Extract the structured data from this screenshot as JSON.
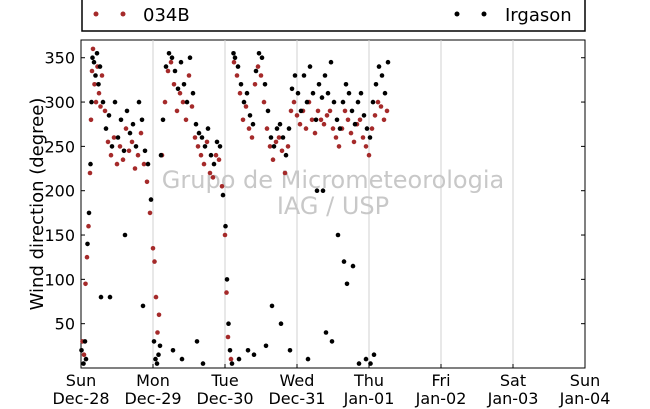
{
  "chart_data": {
    "type": "scatter",
    "ylabel": "Wind direction (degree)",
    "xlabel": "",
    "ylim": [
      0,
      370
    ],
    "yticks": [
      50,
      100,
      150,
      200,
      250,
      300,
      350
    ],
    "xlim": [
      "2014-12-28",
      "2015-01-04"
    ],
    "xticks": [
      {
        "day": "Sun",
        "date": "Dec-28"
      },
      {
        "day": "Mon",
        "date": "Dec-29"
      },
      {
        "day": "Tue",
        "date": "Dec-30"
      },
      {
        "day": "Wed",
        "date": "Dec-31"
      },
      {
        "day": "Thu",
        "date": "Jan-01"
      },
      {
        "day": "Fri",
        "date": "Jan-02"
      },
      {
        "day": "Sat",
        "date": "Jan-03"
      },
      {
        "day": "Sun",
        "date": "Jan-04"
      }
    ],
    "grid": "vertical",
    "legend_position": "top",
    "watermark": [
      "Grupo de Micrometeorologia",
      "IAG / USP"
    ],
    "series": [
      {
        "name": "034B",
        "color": "#a52a2a",
        "points": [
          [
            "2014-12-28 00:30",
            30
          ],
          [
            "2014-12-28 01:00",
            15
          ],
          [
            "2014-12-28 01:30",
            95
          ],
          [
            "2014-12-28 02:00",
            125
          ],
          [
            "2014-12-28 02:30",
            160
          ],
          [
            "2014-12-28 03:00",
            220
          ],
          [
            "2014-12-28 03:20",
            280
          ],
          [
            "2014-12-28 03:40",
            335
          ],
          [
            "2014-12-28 04:00",
            360
          ],
          [
            "2014-12-28 04:30",
            320
          ],
          [
            "2014-12-28 05:00",
            300
          ],
          [
            "2014-12-28 05:30",
            340
          ],
          [
            "2014-12-28 06:00",
            310
          ],
          [
            "2014-12-28 06:30",
            295
          ],
          [
            "2014-12-28 07:00",
            330
          ],
          [
            "2014-12-28 08:00",
            290
          ],
          [
            "2014-12-28 09:00",
            255
          ],
          [
            "2014-12-28 10:00",
            240
          ],
          [
            "2014-12-28 11:00",
            260
          ],
          [
            "2014-12-28 12:00",
            230
          ],
          [
            "2014-12-28 13:00",
            250
          ],
          [
            "2014-12-28 14:00",
            235
          ],
          [
            "2014-12-28 15:00",
            270
          ],
          [
            "2014-12-28 16:00",
            245
          ],
          [
            "2014-12-28 17:00",
            255
          ],
          [
            "2014-12-28 18:00",
            225
          ],
          [
            "2014-12-28 19:00",
            240
          ],
          [
            "2014-12-28 20:00",
            265
          ],
          [
            "2014-12-28 21:00",
            230
          ],
          [
            "2014-12-28 22:00",
            210
          ],
          [
            "2014-12-28 23:00",
            175
          ],
          [
            "2014-12-29 00:00",
            135
          ],
          [
            "2014-12-29 00:30",
            120
          ],
          [
            "2014-12-29 01:00",
            80
          ],
          [
            "2014-12-29 01:30",
            40
          ],
          [
            "2014-12-29 02:00",
            60
          ],
          [
            "2014-12-29 03:00",
            240
          ],
          [
            "2014-12-29 04:00",
            300
          ],
          [
            "2014-12-29 05:00",
            335
          ],
          [
            "2014-12-29 06:00",
            345
          ],
          [
            "2014-12-29 07:00",
            320
          ],
          [
            "2014-12-29 08:00",
            290
          ],
          [
            "2014-12-29 09:00",
            310
          ],
          [
            "2014-12-29 10:00",
            300
          ],
          [
            "2014-12-29 11:00",
            280
          ],
          [
            "2014-12-29 12:00",
            330
          ],
          [
            "2014-12-29 13:00",
            295
          ],
          [
            "2014-12-29 14:00",
            260
          ],
          [
            "2014-12-29 15:00",
            250
          ],
          [
            "2014-12-29 16:00",
            240
          ],
          [
            "2014-12-29 17:00",
            230
          ],
          [
            "2014-12-29 18:00",
            255
          ],
          [
            "2014-12-29 19:00",
            220
          ],
          [
            "2014-12-29 20:00",
            215
          ],
          [
            "2014-12-29 21:00",
            240
          ],
          [
            "2014-12-29 22:00",
            235
          ],
          [
            "2014-12-29 23:00",
            205
          ],
          [
            "2014-12-30 00:00",
            150
          ],
          [
            "2014-12-30 00:30",
            85
          ],
          [
            "2014-12-30 01:00",
            35
          ],
          [
            "2014-12-30 02:00",
            10
          ],
          [
            "2014-12-30 03:00",
            345
          ],
          [
            "2014-12-30 04:00",
            330
          ],
          [
            "2014-12-30 05:00",
            310
          ],
          [
            "2014-12-30 06:00",
            280
          ],
          [
            "2014-12-30 07:00",
            295
          ],
          [
            "2014-12-30 08:00",
            270
          ],
          [
            "2014-12-30 09:00",
            260
          ],
          [
            "2014-12-30 10:00",
            320
          ],
          [
            "2014-12-30 11:00",
            340
          ],
          [
            "2014-12-30 12:00",
            330
          ],
          [
            "2014-12-30 13:00",
            300
          ],
          [
            "2014-12-30 14:00",
            270
          ],
          [
            "2014-12-30 15:00",
            250
          ],
          [
            "2014-12-30 16:00",
            235
          ],
          [
            "2014-12-30 17:00",
            255
          ],
          [
            "2014-12-30 18:00",
            260
          ],
          [
            "2014-12-30 19:00",
            245
          ],
          [
            "2014-12-30 20:00",
            220
          ],
          [
            "2014-12-30 21:00",
            250
          ],
          [
            "2014-12-30 22:00",
            290
          ],
          [
            "2014-12-30 23:00",
            300
          ],
          [
            "2014-12-31 00:00",
            285
          ],
          [
            "2014-12-31 01:00",
            275
          ],
          [
            "2014-12-31 02:00",
            290
          ],
          [
            "2014-12-31 03:00",
            270
          ],
          [
            "2014-12-31 04:00",
            300
          ],
          [
            "2014-12-31 05:00",
            280
          ],
          [
            "2014-12-31 06:00",
            265
          ],
          [
            "2014-12-31 07:00",
            290
          ],
          [
            "2014-12-31 08:00",
            280
          ],
          [
            "2014-12-31 09:00",
            275
          ],
          [
            "2014-12-31 10:00",
            285
          ],
          [
            "2014-12-31 11:00",
            290
          ],
          [
            "2014-12-31 12:00",
            270
          ],
          [
            "2014-12-31 13:00",
            260
          ],
          [
            "2014-12-31 14:00",
            250
          ],
          [
            "2014-12-31 15:00",
            270
          ],
          [
            "2014-12-31 16:00",
            290
          ],
          [
            "2014-12-31 17:00",
            280
          ],
          [
            "2014-12-31 18:00",
            265
          ],
          [
            "2014-12-31 19:00",
            255
          ],
          [
            "2014-12-31 20:00",
            275
          ],
          [
            "2014-12-31 21:00",
            280
          ],
          [
            "2014-12-31 22:00",
            260
          ],
          [
            "2014-12-31 23:00",
            250
          ],
          [
            "2015-01-01 00:00",
            240
          ],
          [
            "2015-01-01 01:00",
            270
          ],
          [
            "2015-01-01 02:00",
            285
          ],
          [
            "2015-01-01 03:00",
            300
          ],
          [
            "2015-01-01 04:00",
            295
          ],
          [
            "2015-01-01 05:00",
            280
          ],
          [
            "2015-01-01 06:00",
            290
          ]
        ]
      },
      {
        "name": "Irgason",
        "color": "#000000",
        "points": [
          [
            "2014-12-28 00:10",
            20
          ],
          [
            "2014-12-28 00:50",
            5
          ],
          [
            "2014-12-28 01:20",
            30
          ],
          [
            "2014-12-28 01:40",
            10
          ],
          [
            "2014-12-28 02:10",
            140
          ],
          [
            "2014-12-28 02:40",
            175
          ],
          [
            "2014-12-28 03:10",
            230
          ],
          [
            "2014-12-28 03:30",
            300
          ],
          [
            "2014-12-28 03:50",
            350
          ],
          [
            "2014-12-28 04:20",
            345
          ],
          [
            "2014-12-28 04:50",
            330
          ],
          [
            "2014-12-28 05:20",
            355
          ],
          [
            "2014-12-28 05:50",
            320
          ],
          [
            "2014-12-28 06:20",
            340
          ],
          [
            "2014-12-28 07:20",
            300
          ],
          [
            "2014-12-28 08:20",
            270
          ],
          [
            "2014-12-28 09:20",
            285
          ],
          [
            "2014-12-28 10:20",
            250
          ],
          [
            "2014-12-28 11:20",
            300
          ],
          [
            "2014-12-28 12:20",
            260
          ],
          [
            "2014-12-28 13:20",
            280
          ],
          [
            "2014-12-28 14:20",
            245
          ],
          [
            "2014-12-28 15:20",
            290
          ],
          [
            "2014-12-28 16:20",
            265
          ],
          [
            "2014-12-28 17:20",
            275
          ],
          [
            "2014-12-28 18:20",
            250
          ],
          [
            "2014-12-28 19:20",
            300
          ],
          [
            "2014-12-28 20:20",
            280
          ],
          [
            "2014-12-28 21:20",
            245
          ],
          [
            "2014-12-28 22:20",
            230
          ],
          [
            "2014-12-28 23:20",
            190
          ],
          [
            "2014-12-29 00:20",
            30
          ],
          [
            "2014-12-29 00:50",
            10
          ],
          [
            "2014-12-29 01:20",
            5
          ],
          [
            "2014-12-29 01:50",
            15
          ],
          [
            "2014-12-29 02:20",
            25
          ],
          [
            "2014-12-29 03:20",
            280
          ],
          [
            "2014-12-29 04:20",
            340
          ],
          [
            "2014-12-29 05:20",
            355
          ],
          [
            "2014-12-29 06:20",
            350
          ],
          [
            "2014-12-29 07:20",
            335
          ],
          [
            "2014-12-29 08:20",
            315
          ],
          [
            "2014-12-29 09:20",
            345
          ],
          [
            "2014-12-29 10:20",
            320
          ],
          [
            "2014-12-29 11:20",
            300
          ],
          [
            "2014-12-29 12:20",
            350
          ],
          [
            "2014-12-29 13:20",
            310
          ],
          [
            "2014-12-29 14:20",
            275
          ],
          [
            "2014-12-29 15:20",
            265
          ],
          [
            "2014-12-29 16:20",
            260
          ],
          [
            "2014-12-29 17:20",
            250
          ],
          [
            "2014-12-29 18:20",
            270
          ],
          [
            "2014-12-29 19:20",
            240
          ],
          [
            "2014-12-29 20:20",
            230
          ],
          [
            "2014-12-29 21:20",
            255
          ],
          [
            "2014-12-29 22:20",
            250
          ],
          [
            "2014-12-29 23:20",
            195
          ],
          [
            "2014-12-30 00:10",
            160
          ],
          [
            "2014-12-30 00:40",
            100
          ],
          [
            "2014-12-30 01:10",
            50
          ],
          [
            "2014-12-30 01:40",
            20
          ],
          [
            "2014-12-30 02:20",
            5
          ],
          [
            "2014-12-30 02:50",
            355
          ],
          [
            "2014-12-30 03:20",
            350
          ],
          [
            "2014-12-30 04:20",
            340
          ],
          [
            "2014-12-30 05:20",
            320
          ],
          [
            "2014-12-30 06:20",
            300
          ],
          [
            "2014-12-30 07:20",
            310
          ],
          [
            "2014-12-30 08:20",
            285
          ],
          [
            "2014-12-30 09:20",
            275
          ],
          [
            "2014-12-30 10:20",
            335
          ],
          [
            "2014-12-30 11:20",
            355
          ],
          [
            "2014-12-30 12:20",
            350
          ],
          [
            "2014-12-30 13:20",
            320
          ],
          [
            "2014-12-30 14:20",
            290
          ],
          [
            "2014-12-30 15:20",
            260
          ],
          [
            "2014-12-30 16:20",
            250
          ],
          [
            "2014-12-30 17:20",
            270
          ],
          [
            "2014-12-30 18:20",
            275
          ],
          [
            "2014-12-30 19:20",
            260
          ],
          [
            "2014-12-30 20:20",
            240
          ],
          [
            "2014-12-30 21:20",
            270
          ],
          [
            "2014-12-30 22:20",
            315
          ],
          [
            "2014-12-30 23:20",
            330
          ],
          [
            "2014-12-31 00:20",
            310
          ],
          [
            "2014-12-31 01:20",
            290
          ],
          [
            "2014-12-31 02:20",
            330
          ],
          [
            "2014-12-31 03:20",
            300
          ],
          [
            "2014-12-31 04:20",
            340
          ],
          [
            "2014-12-31 05:20",
            310
          ],
          [
            "2014-12-31 06:20",
            280
          ],
          [
            "2014-12-31 07:20",
            320
          ],
          [
            "2014-12-31 08:20",
            305
          ],
          [
            "2014-12-31 09:20",
            330
          ],
          [
            "2014-12-31 10:20",
            310
          ],
          [
            "2014-12-31 11:20",
            345
          ],
          [
            "2014-12-31 12:20",
            300
          ],
          [
            "2014-12-31 13:20",
            280
          ],
          [
            "2014-12-31 14:20",
            270
          ],
          [
            "2014-12-31 15:20",
            300
          ],
          [
            "2014-12-31 16:20",
            320
          ],
          [
            "2014-12-31 17:20",
            310
          ],
          [
            "2014-12-31 18:20",
            290
          ],
          [
            "2014-12-31 19:20",
            275
          ],
          [
            "2014-12-31 20:20",
            300
          ],
          [
            "2014-12-31 21:20",
            310
          ],
          [
            "2014-12-31 22:20",
            285
          ],
          [
            "2014-12-31 23:20",
            270
          ],
          [
            "2015-01-01 00:20",
            260
          ],
          [
            "2015-01-01 01:20",
            300
          ],
          [
            "2015-01-01 02:20",
            320
          ],
          [
            "2015-01-01 03:20",
            340
          ],
          [
            "2015-01-01 04:20",
            330
          ],
          [
            "2015-01-01 05:20",
            310
          ],
          [
            "2015-01-01 06:20",
            345
          ],
          [
            "2014-12-28 06:40",
            80
          ],
          [
            "2014-12-28 09:40",
            80
          ],
          [
            "2014-12-28 14:40",
            150
          ],
          [
            "2014-12-28 20:40",
            70
          ],
          [
            "2014-12-29 02:40",
            240
          ],
          [
            "2014-12-29 06:40",
            20
          ],
          [
            "2014-12-29 09:40",
            10
          ],
          [
            "2014-12-29 16:40",
            5
          ],
          [
            "2014-12-30 07:40",
            20
          ],
          [
            "2014-12-30 09:40",
            15
          ],
          [
            "2014-12-30 13:40",
            25
          ],
          [
            "2014-12-30 15:40",
            70
          ],
          [
            "2014-12-30 18:40",
            50
          ],
          [
            "2014-12-30 21:40",
            20
          ],
          [
            "2014-12-31 03:40",
            10
          ],
          [
            "2014-12-31 06:40",
            200
          ],
          [
            "2014-12-31 08:40",
            200
          ],
          [
            "2014-12-31 09:40",
            40
          ],
          [
            "2014-12-31 13:40",
            150
          ],
          [
            "2014-12-31 15:40",
            120
          ],
          [
            "2014-12-31 16:40",
            95
          ],
          [
            "2014-12-31 18:40",
            115
          ],
          [
            "2014-12-31 23:00",
            10
          ],
          [
            "2015-01-01 00:30",
            5
          ],
          [
            "2015-01-01 01:40",
            15
          ],
          [
            "2014-12-29 14:40",
            30
          ],
          [
            "2014-12-30 04:40",
            10
          ],
          [
            "2014-12-31 11:40",
            30
          ],
          [
            "2014-12-31 20:40",
            5
          ]
        ]
      }
    ]
  }
}
